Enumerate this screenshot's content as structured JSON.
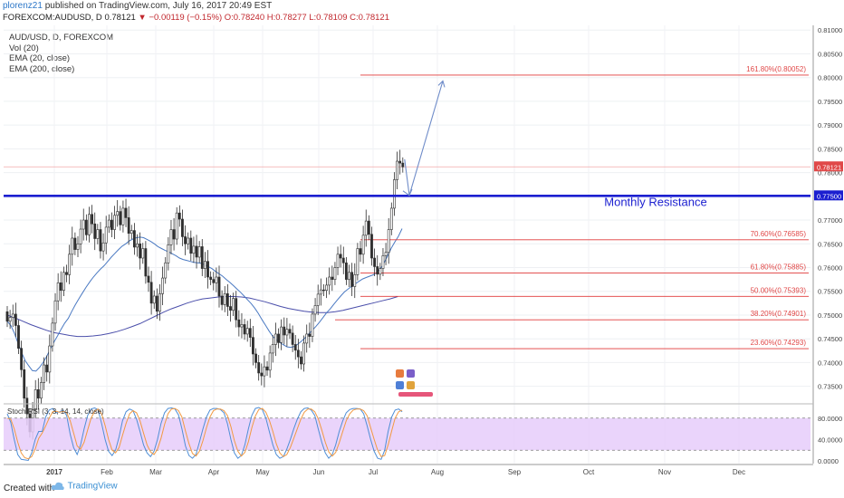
{
  "header": {
    "author": "plorenz21",
    "published_text": "published on TradingView.com, July 16, 2017 20:49 EST",
    "symbol_line": "FOREXCOM:AUDUSD, D",
    "last": "0.78121",
    "change": "−0.00119 (−0.15%)",
    "ohlc": "O:0.78240 H:0.78277 L:0.78109 C:0.78121"
  },
  "legend": {
    "symbol": "AUD/USD, D, FOREXCOM",
    "vol": "Vol (20)",
    "ema20": "EMA (20, close)",
    "ema200": "EMA (200, close)"
  },
  "colors": {
    "candle": "#2e2e2e",
    "ema20": "#4a79c2",
    "ema200": "#4a4eaa",
    "fib": "#e03a3a",
    "resistance": "#1b1fd0",
    "stoch_k": "#4f8ed6",
    "stoch_d": "#f29a42",
    "stoch_fill": "#e6ccfa",
    "arrow": "#6f8cc9",
    "label_red": "#e04848",
    "label_blue": "#1b1fd0"
  },
  "chart_data": [
    {
      "type": "candlestick",
      "title": "AUD/USD, D, FOREXCOM",
      "x_axis": {
        "labels": [
          "2017",
          "Feb",
          "Mar",
          "Apr",
          "May",
          "Jun",
          "Jul",
          "Aug",
          "Sep",
          "Oct",
          "Nov",
          "Dec"
        ]
      },
      "y_axis": {
        "range": [
          0.7315,
          0.811
        ],
        "tick_labels": [
          "0.81000",
          "0.80500",
          "0.80000",
          "0.79500",
          "0.79000",
          "0.78500",
          "0.78000",
          "0.77500",
          "0.77000",
          "0.76500",
          "0.76000",
          "0.75500",
          "0.75000",
          "0.74500",
          "0.74000",
          "0.73500"
        ],
        "last_price_label": "0.78121",
        "resistance_label": "0.77500"
      },
      "monthly_resistance": {
        "value": 0.7751,
        "label": "Monthly Resistance"
      },
      "fib_levels": [
        {
          "value": 0.80052,
          "label": "161.80%(0.80052)"
        },
        {
          "value": 0.76585,
          "label": "70.60%(0.76585)"
        },
        {
          "value": 0.75885,
          "label": "61.80%(0.75885)"
        },
        {
          "value": 0.75393,
          "label": "50.00%(0.75393)"
        },
        {
          "value": 0.74901,
          "label": "38.20%(0.74901)"
        },
        {
          "value": 0.74293,
          "label": "23.60%(0.74293)"
        }
      ],
      "closes": [
        0.7487,
        0.7495,
        0.7502,
        0.7478,
        0.743,
        0.7385,
        0.7325,
        0.7292,
        0.7254,
        0.7301,
        0.7343,
        0.7325,
        0.7358,
        0.7395,
        0.738,
        0.7435,
        0.7483,
        0.753,
        0.7568,
        0.7552,
        0.759,
        0.7585,
        0.7628,
        0.7662,
        0.7638,
        0.765,
        0.7681,
        0.77,
        0.7669,
        0.7712,
        0.7692,
        0.7661,
        0.768,
        0.7635,
        0.7652,
        0.7685,
        0.77,
        0.768,
        0.771,
        0.7718,
        0.769,
        0.7725,
        0.7705,
        0.7672,
        0.7678,
        0.7643,
        0.765,
        0.762,
        0.764,
        0.7582,
        0.7569,
        0.7525,
        0.754,
        0.7508,
        0.7545,
        0.7578,
        0.761,
        0.7648,
        0.768,
        0.766,
        0.7715,
        0.7702,
        0.7665,
        0.765,
        0.7662,
        0.763,
        0.7645,
        0.7622,
        0.7644,
        0.7598,
        0.7613,
        0.758,
        0.7575,
        0.7568,
        0.758,
        0.754,
        0.7522,
        0.7545,
        0.7518,
        0.751,
        0.7535,
        0.749,
        0.7475,
        0.748,
        0.746,
        0.7472,
        0.7453,
        0.7418,
        0.74,
        0.7378,
        0.7372,
        0.7391,
        0.7384,
        0.742,
        0.7438,
        0.746,
        0.7442,
        0.7475,
        0.7458,
        0.747,
        0.7462,
        0.7438,
        0.7426,
        0.7412,
        0.7397,
        0.7441,
        0.746,
        0.7455,
        0.7502,
        0.752,
        0.7544,
        0.7553,
        0.7552,
        0.7563,
        0.758,
        0.7575,
        0.76,
        0.7628,
        0.762,
        0.761,
        0.7575,
        0.759,
        0.756,
        0.7585,
        0.764,
        0.7628,
        0.7668,
        0.7698,
        0.767,
        0.762,
        0.7602,
        0.7586,
        0.7598,
        0.7625,
        0.7632,
        0.768,
        0.7725,
        0.7785,
        0.7824,
        0.782,
        0.7812
      ],
      "ema20": [
        0.7487,
        0.7478,
        0.7462,
        0.7441,
        0.7421,
        0.7404,
        0.7393,
        0.7383,
        0.7382,
        0.739,
        0.74,
        0.7413,
        0.7429,
        0.7443,
        0.7456,
        0.747,
        0.7483,
        0.7493,
        0.7508,
        0.7522,
        0.7535,
        0.7547,
        0.7559,
        0.757,
        0.758,
        0.7589,
        0.7597,
        0.7604,
        0.7613,
        0.7622,
        0.763,
        0.7638,
        0.7645,
        0.765,
        0.7656,
        0.766,
        0.7663,
        0.7664,
        0.7663,
        0.7659,
        0.7655,
        0.765,
        0.7644,
        0.764,
        0.7636,
        0.7633,
        0.7629,
        0.7625,
        0.762,
        0.7617,
        0.7615,
        0.7613,
        0.7611,
        0.761,
        0.7609,
        0.7606,
        0.7602,
        0.7598,
        0.7592,
        0.7587,
        0.7582,
        0.7575,
        0.7569,
        0.7562,
        0.7555,
        0.7548,
        0.754,
        0.7532,
        0.7524,
        0.7514,
        0.7503,
        0.749,
        0.7478,
        0.7466,
        0.7455,
        0.7448,
        0.7442,
        0.7437,
        0.7433,
        0.7432,
        0.7434,
        0.7439,
        0.7445,
        0.7452,
        0.746,
        0.7468,
        0.7476,
        0.7485,
        0.7495,
        0.7505,
        0.7513,
        0.7523,
        0.7532,
        0.7541,
        0.7549,
        0.7555,
        0.7561,
        0.7566,
        0.7571,
        0.7576,
        0.7579,
        0.7582,
        0.7585,
        0.759,
        0.7598,
        0.761,
        0.7625,
        0.7641,
        0.7654,
        0.7666,
        0.7682
      ],
      "ema200": [
        0.75,
        0.7494,
        0.7487,
        0.748,
        0.7474,
        0.7468,
        0.7463,
        0.746,
        0.7457,
        0.7455,
        0.7455,
        0.7456,
        0.7458,
        0.7461,
        0.7465,
        0.747,
        0.7476,
        0.7482,
        0.749,
        0.7498,
        0.7506,
        0.7513,
        0.7519,
        0.7525,
        0.753,
        0.7534,
        0.7536,
        0.7538,
        0.7539,
        0.7539,
        0.7538,
        0.7536,
        0.7532,
        0.7528,
        0.7523,
        0.7518,
        0.7514,
        0.7511,
        0.7508,
        0.7506,
        0.7505,
        0.7505,
        0.7507,
        0.751,
        0.7514,
        0.7518,
        0.7522,
        0.7526,
        0.753,
        0.7534,
        0.7539
      ]
    },
    {
      "type": "line",
      "title": "Stoch RSI (3, 3, 14, 14, close)",
      "y_axis": {
        "range": [
          -5,
          105
        ],
        "tick_labels": [
          "80.0000",
          "40.0000",
          "0.0000"
        ],
        "bands": [
          80,
          20
        ]
      },
      "series": [
        {
          "name": "K",
          "values": [
            88,
            72,
            40,
            12,
            3,
            2,
            1,
            15,
            40,
            55,
            55,
            82,
            95,
            98,
            90,
            92,
            95,
            85,
            50,
            25,
            12,
            30,
            60,
            85,
            97,
            99,
            96,
            70,
            40,
            18,
            10,
            20,
            45,
            75,
            92,
            97,
            94,
            78,
            55,
            30,
            15,
            8,
            18,
            40,
            70,
            90,
            98,
            99,
            97,
            86,
            60,
            28,
            10,
            5,
            12,
            35,
            60,
            82,
            95,
            98,
            98,
            96,
            90,
            70,
            40,
            15,
            5,
            10,
            30,
            60,
            85,
            98,
            100,
            96,
            80,
            55,
            30,
            12,
            5,
            8,
            22,
            40,
            60,
            78,
            92,
            98,
            99,
            95,
            85,
            60,
            35,
            15,
            5,
            12,
            30,
            55,
            75,
            90,
            96,
            98,
            98,
            97,
            88,
            65,
            40,
            18,
            5,
            3,
            20,
            55,
            82,
            95,
            97,
            92
          ]
        },
        {
          "name": "D",
          "values": [
            80,
            78,
            60,
            35,
            15,
            6,
            4,
            8,
            22,
            42,
            52,
            65,
            80,
            92,
            93,
            91,
            93,
            90,
            75,
            52,
            28,
            22,
            35,
            58,
            80,
            93,
            97,
            88,
            66,
            40,
            20,
            15,
            25,
            48,
            70,
            88,
            94,
            90,
            75,
            52,
            30,
            17,
            12,
            22,
            42,
            68,
            88,
            97,
            98,
            94,
            82,
            56,
            32,
            14,
            9,
            18,
            38,
            62,
            82,
            94,
            97,
            97,
            94,
            85,
            64,
            38,
            18,
            9,
            16,
            36,
            62,
            84,
            96,
            98,
            91,
            76,
            55,
            32,
            15,
            8,
            12,
            25,
            42,
            60,
            78,
            91,
            97,
            97,
            92,
            79,
            58,
            35,
            17,
            9,
            16,
            34,
            55,
            75,
            88,
            95,
            97,
            97,
            94,
            84,
            62,
            40,
            20,
            8,
            10,
            30,
            56,
            80,
            92,
            95
          ]
        }
      ]
    }
  ],
  "footer": {
    "created_with": "Created with",
    "brand": "TradingView"
  }
}
